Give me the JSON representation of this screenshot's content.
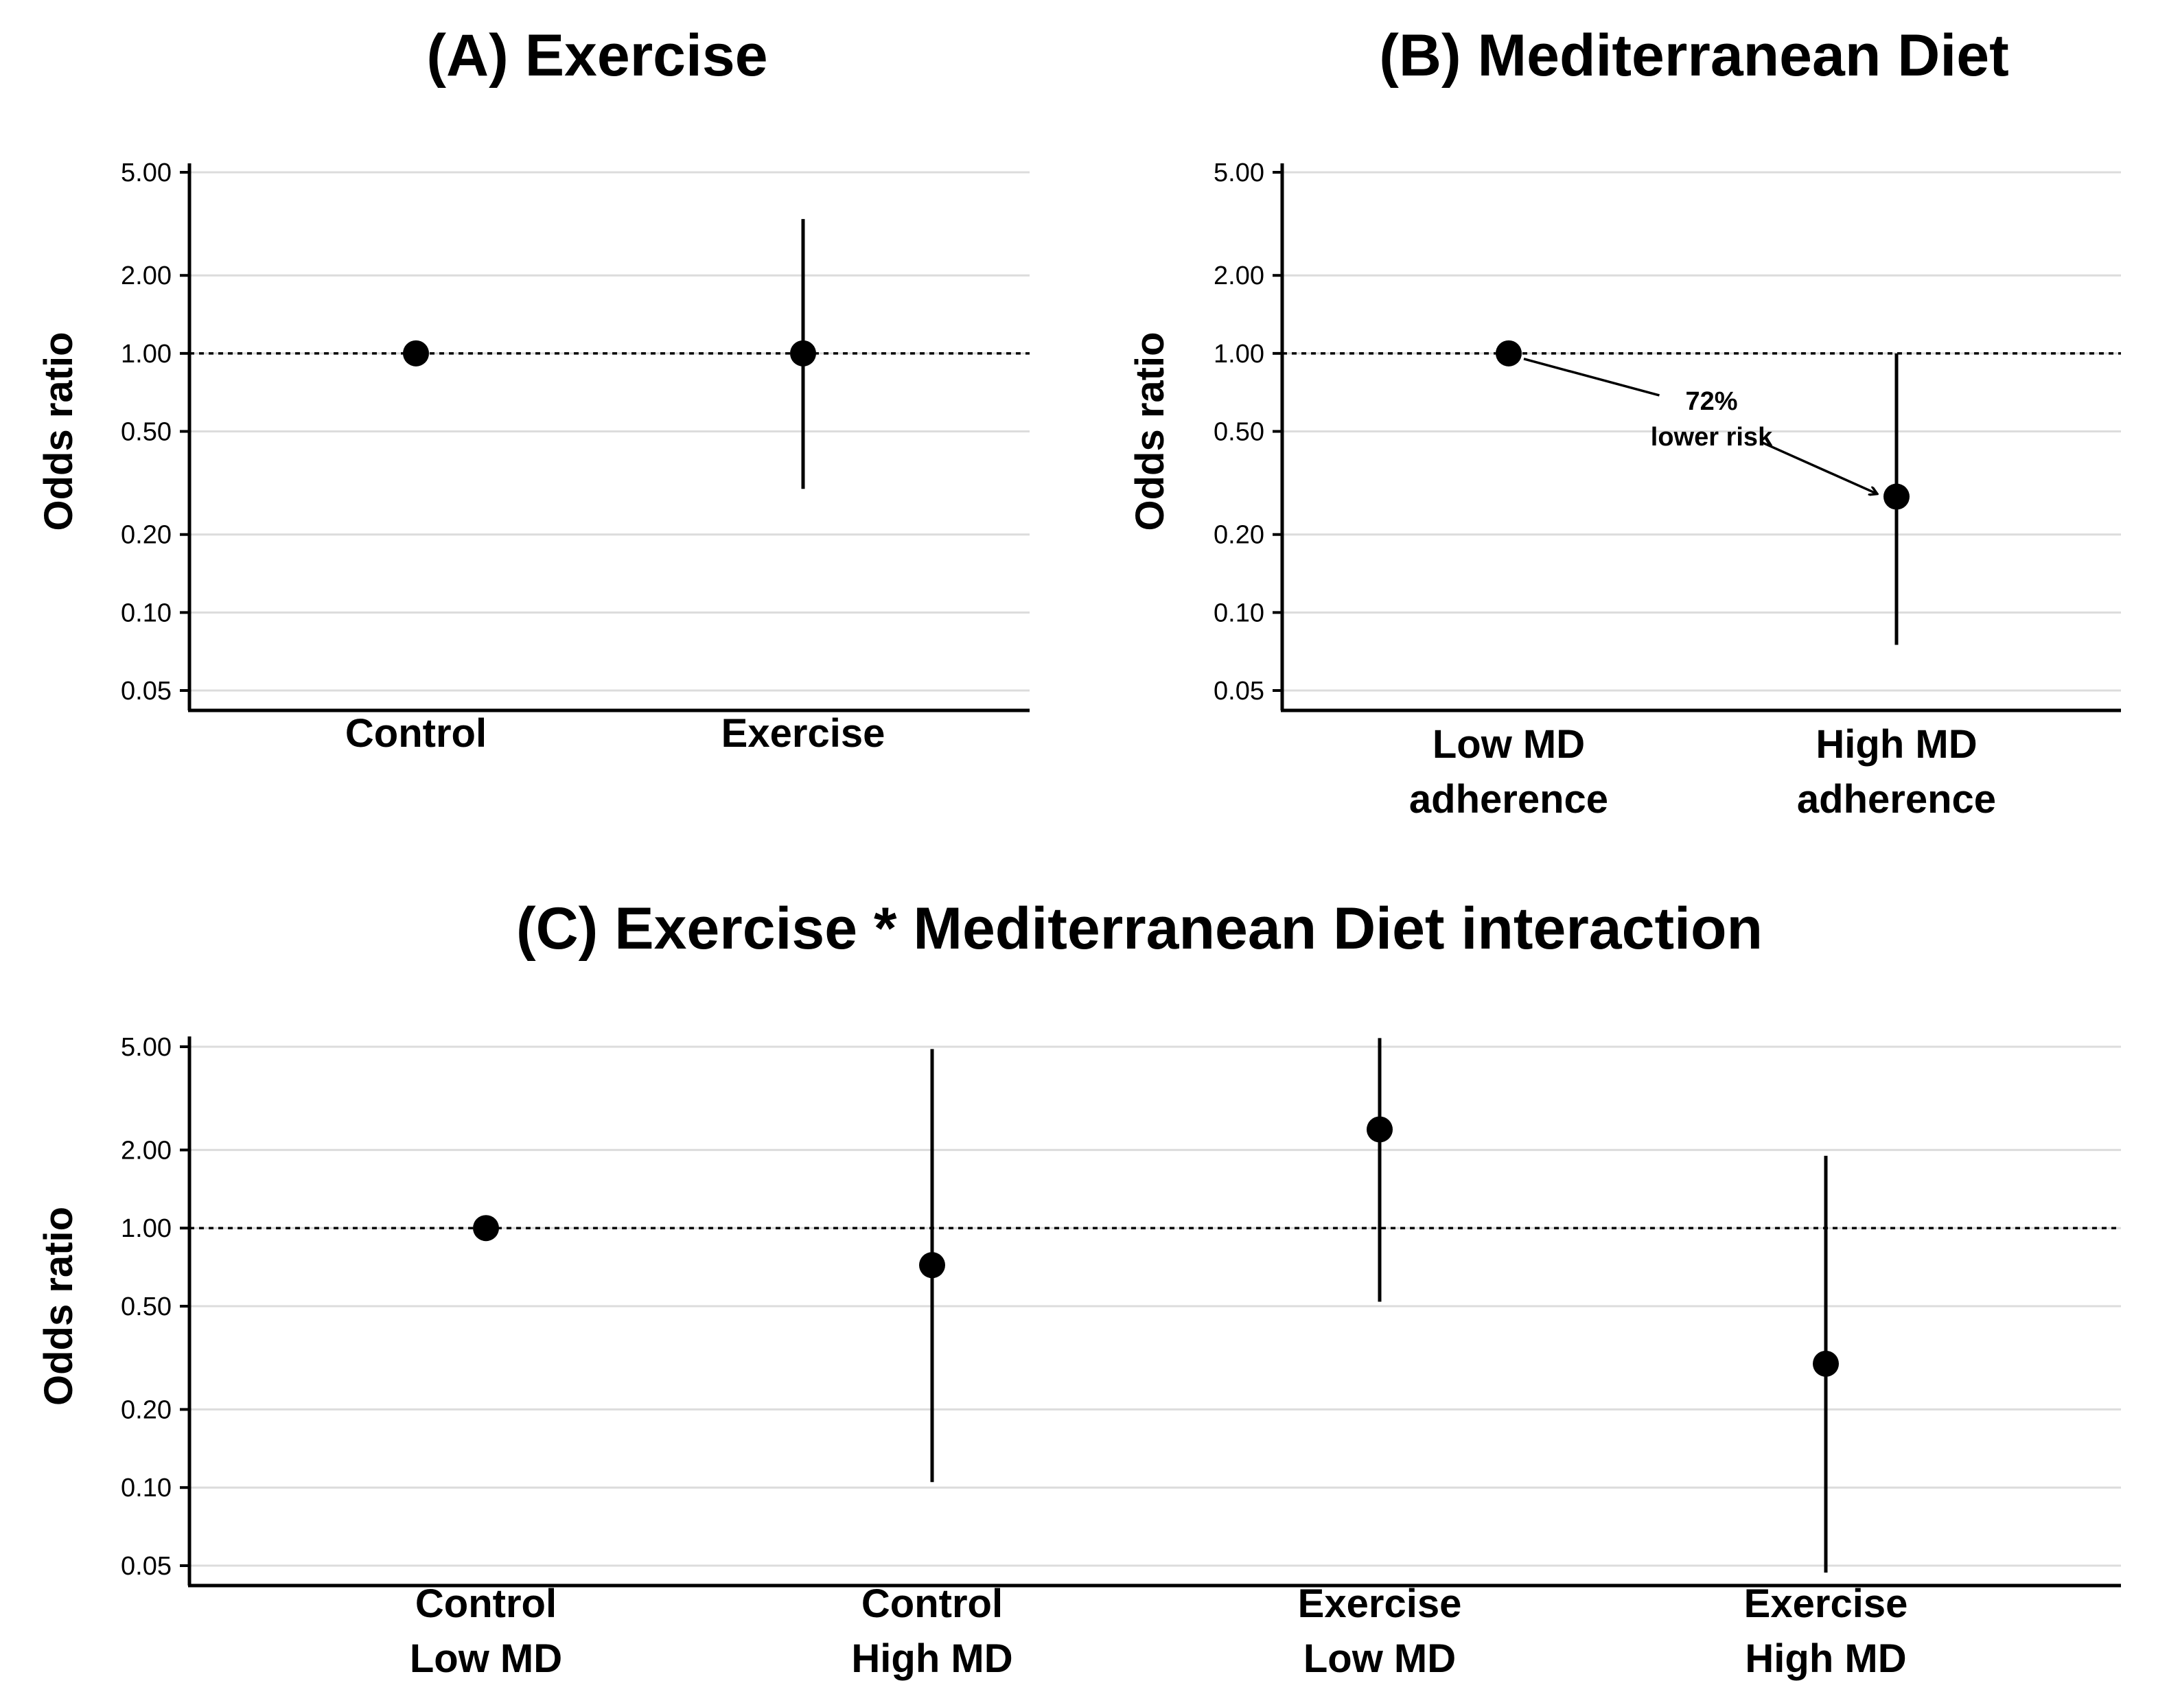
{
  "chart_data": [
    {
      "id": "A",
      "type": "scatter",
      "title": "(A) Exercise",
      "ylabel": "Odds ratio",
      "xlabel": "",
      "yscale": "log",
      "ylim": [
        0.05,
        5.0
      ],
      "yticks": [
        5.0,
        2.0,
        1.0,
        0.5,
        0.2,
        0.1,
        0.05
      ],
      "ytick_labels": [
        "5.00",
        "2.00",
        "1.00",
        "0.50",
        "0.20",
        "0.10",
        "0.05"
      ],
      "reference_line": 1.0,
      "grid": true,
      "categories": [
        [
          "Control"
        ],
        [
          "Exercise"
        ]
      ],
      "points": [
        {
          "or": 1.0,
          "low": null,
          "high": null
        },
        {
          "or": 1.0,
          "low": 0.3,
          "high": 3.3
        }
      ],
      "annotations": []
    },
    {
      "id": "B",
      "type": "scatter",
      "title": "(B) Mediterranean Diet",
      "ylabel": "Odds ratio",
      "xlabel": "",
      "yscale": "log",
      "ylim": [
        0.05,
        5.0
      ],
      "yticks": [
        5.0,
        2.0,
        1.0,
        0.5,
        0.2,
        0.1,
        0.05
      ],
      "ytick_labels": [
        "5.00",
        "2.00",
        "1.00",
        "0.50",
        "0.20",
        "0.10",
        "0.05"
      ],
      "reference_line": 1.0,
      "grid": true,
      "categories": [
        [
          "Low MD",
          "adherence"
        ],
        [
          "High MD",
          "adherence"
        ]
      ],
      "points": [
        {
          "or": 1.0,
          "low": null,
          "high": null
        },
        {
          "or": 0.28,
          "low": 0.075,
          "high": 1.0
        }
      ],
      "annotations": [
        {
          "lines": [
            "72%",
            "lower risk"
          ],
          "from_category": 0,
          "to_category": 1
        }
      ]
    },
    {
      "id": "C",
      "type": "scatter",
      "title": "(C) Exercise * Mediterranean Diet interaction",
      "ylabel": "Odds ratio",
      "xlabel": "",
      "yscale": "log",
      "ylim": [
        0.05,
        5.0
      ],
      "yticks": [
        5.0,
        2.0,
        1.0,
        0.5,
        0.2,
        0.1,
        0.05
      ],
      "ytick_labels": [
        "5.00",
        "2.00",
        "1.00",
        "0.50",
        "0.20",
        "0.10",
        "0.05"
      ],
      "reference_line": 1.0,
      "grid": true,
      "categories": [
        [
          "Control",
          "Low MD"
        ],
        [
          "Control",
          "High MD"
        ],
        [
          "Exercise",
          "Low MD"
        ],
        [
          "Exercise",
          "High MD"
        ]
      ],
      "points": [
        {
          "or": 1.0,
          "low": null,
          "high": null
        },
        {
          "or": 0.72,
          "low": 0.105,
          "high": 4.9
        },
        {
          "or": 2.4,
          "low": 0.52,
          "high": 5.4
        },
        {
          "or": 0.3,
          "low": 0.047,
          "high": 1.9
        }
      ],
      "annotations": []
    }
  ]
}
